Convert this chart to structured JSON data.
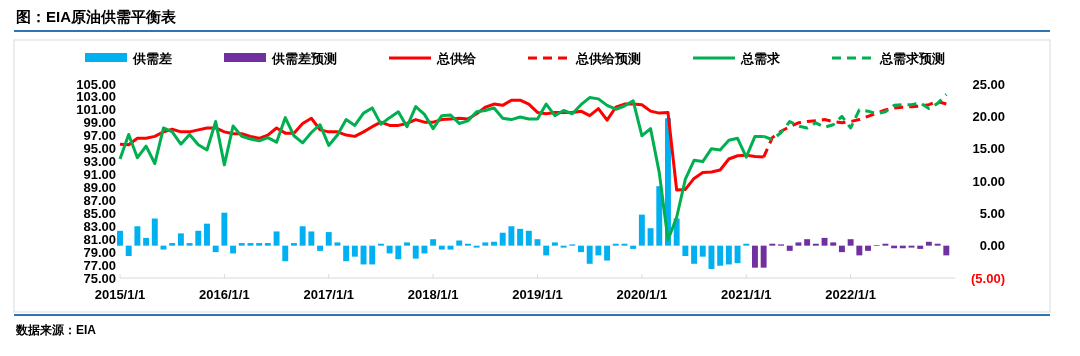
{
  "chart_data": {
    "type": "line",
    "title": "图：EIA原油供需平衡表",
    "annotations": [
      "数据来源：EIA"
    ],
    "legend": "top",
    "x": [
      "2015-01",
      "2015-02",
      "2015-03",
      "2015-04",
      "2015-05",
      "2015-06",
      "2015-07",
      "2015-08",
      "2015-09",
      "2015-10",
      "2015-11",
      "2015-12",
      "2016-01",
      "2016-02",
      "2016-03",
      "2016-04",
      "2016-05",
      "2016-06",
      "2016-07",
      "2016-08",
      "2016-09",
      "2016-10",
      "2016-11",
      "2016-12",
      "2017-01",
      "2017-02",
      "2017-03",
      "2017-04",
      "2017-05",
      "2017-06",
      "2017-07",
      "2017-08",
      "2017-09",
      "2017-10",
      "2017-11",
      "2017-12",
      "2018-01",
      "2018-02",
      "2018-03",
      "2018-04",
      "2018-05",
      "2018-06",
      "2018-07",
      "2018-08",
      "2018-09",
      "2018-10",
      "2018-11",
      "2018-12",
      "2019-01",
      "2019-02",
      "2019-03",
      "2019-04",
      "2019-05",
      "2019-06",
      "2019-07",
      "2019-08",
      "2019-09",
      "2019-10",
      "2019-11",
      "2019-12",
      "2020-01",
      "2020-02",
      "2020-03",
      "2020-04",
      "2020-05",
      "2020-06",
      "2020-07",
      "2020-08",
      "2020-09",
      "2020-10",
      "2020-11",
      "2020-12",
      "2021-01",
      "2021-02",
      "2021-03",
      "2021-04",
      "2021-05",
      "2021-06",
      "2021-07",
      "2021-08",
      "2021-09",
      "2021-10",
      "2021-11",
      "2021-12",
      "2022-01",
      "2022-02",
      "2022-03",
      "2022-04",
      "2022-05",
      "2022-06",
      "2022-07",
      "2022-08",
      "2022-09",
      "2022-10",
      "2022-11",
      "2022-12"
    ],
    "xlim": [
      "2015-01",
      "2023-01"
    ],
    "xticks": [
      {
        "value": "2015-01-01",
        "label": "2015/1/1"
      },
      {
        "value": "2016-01-01",
        "label": "2016/1/1"
      },
      {
        "value": "2017-01-01",
        "label": "2017/1/1"
      },
      {
        "value": "2018-01-01",
        "label": "2018/1/1"
      },
      {
        "value": "2019-01-01",
        "label": "2019/1/1"
      },
      {
        "value": "2020-01-01",
        "label": "2020/1/1"
      },
      {
        "value": "2021-01-01",
        "label": "2021/1/1"
      },
      {
        "value": "2022-01-01",
        "label": "2022/1/1"
      }
    ],
    "ylim": [
      75,
      105
    ],
    "yticks": [
      {
        "value": 75,
        "label": "75.00"
      },
      {
        "value": 77,
        "label": "77.00"
      },
      {
        "value": 79,
        "label": "79.00"
      },
      {
        "value": 81,
        "label": "81.00"
      },
      {
        "value": 83,
        "label": "83.00"
      },
      {
        "value": 85,
        "label": "85.00"
      },
      {
        "value": 87,
        "label": "87.00"
      },
      {
        "value": 89,
        "label": "89.00"
      },
      {
        "value": 91,
        "label": "91.00"
      },
      {
        "value": 93,
        "label": "93.00"
      },
      {
        "value": 95,
        "label": "95.00"
      },
      {
        "value": 97,
        "label": "97.00"
      },
      {
        "value": 99,
        "label": "99.00"
      },
      {
        "value": 101,
        "label": "101.00"
      },
      {
        "value": 103,
        "label": "103.00"
      },
      {
        "value": 105,
        "label": "105.00"
      }
    ],
    "y2lim": [
      -5,
      25
    ],
    "y2ticks": [
      {
        "value": -5,
        "label": "(5.00)"
      },
      {
        "value": 0,
        "label": "0.00"
      },
      {
        "value": 5,
        "label": "5.00"
      },
      {
        "value": 10,
        "label": "10.00"
      },
      {
        "value": 15,
        "label": "15.00"
      },
      {
        "value": 20,
        "label": "20.00"
      },
      {
        "value": 25,
        "label": "25.00"
      }
    ],
    "series": [
      {
        "name": "供需差",
        "type": "bar",
        "axis": "y2",
        "color": "#00b0f0",
        "values": [
          2.3,
          -1.6,
          3.0,
          1.2,
          4.2,
          -0.6,
          0.4,
          1.9,
          0.4,
          2.3,
          3.4,
          -1.0,
          5.1,
          -1.2,
          0.4,
          0.4,
          0.4,
          0.4,
          2.2,
          -2.4,
          0.4,
          3.0,
          2.2,
          -0.8,
          2.1,
          0.5,
          -2.4,
          -1.7,
          -2.9,
          -2.9,
          0.3,
          -1.2,
          -2.1,
          0.5,
          -2.0,
          -1.2,
          1.0,
          -0.6,
          -0.6,
          0.8,
          0.3,
          -0.3,
          0.5,
          0.6,
          2.0,
          3.0,
          2.6,
          2.3,
          1.0,
          -1.5,
          0.5,
          -0.3,
          0.2,
          -1.0,
          -2.8,
          -1.5,
          -2.3,
          0.3,
          0.3,
          -0.5,
          4.8,
          2.7,
          9.2,
          19.7,
          4.2,
          -1.6,
          -2.8,
          -1.7,
          -3.6,
          -3.1,
          -2.9,
          -2.7,
          0.3,
          null,
          null,
          null,
          null,
          null,
          null,
          null,
          null,
          null,
          null,
          null,
          null,
          null,
          null,
          null,
          null,
          null,
          null,
          null,
          null,
          null,
          null,
          null
        ]
      },
      {
        "name": "供需差预测",
        "type": "bar",
        "axis": "y2",
        "color": "#7030a0",
        "values": [
          null,
          null,
          null,
          null,
          null,
          null,
          null,
          null,
          null,
          null,
          null,
          null,
          null,
          null,
          null,
          null,
          null,
          null,
          null,
          null,
          null,
          null,
          null,
          null,
          null,
          null,
          null,
          null,
          null,
          null,
          null,
          null,
          null,
          null,
          null,
          null,
          null,
          null,
          null,
          null,
          null,
          null,
          null,
          null,
          null,
          null,
          null,
          null,
          null,
          null,
          null,
          null,
          null,
          null,
          null,
          null,
          null,
          null,
          null,
          null,
          null,
          null,
          null,
          null,
          null,
          null,
          null,
          null,
          null,
          null,
          null,
          null,
          null,
          -3.4,
          -3.4,
          0.3,
          0.2,
          -0.8,
          0.5,
          1.0,
          0.3,
          1.2,
          0.5,
          -1.0,
          1.0,
          -1.5,
          -0.8,
          0.1,
          0.3,
          -0.4,
          -0.4,
          -0.3,
          -0.5,
          0.6,
          0.3,
          -1.5
        ]
      },
      {
        "name": "总供给",
        "color": "#ff0000",
        "line_style": "solid",
        "values": [
          95.7,
          95.6,
          96.6,
          96.6,
          96.9,
          97.6,
          98.0,
          97.6,
          97.6,
          97.9,
          98.2,
          98.2,
          97.6,
          97.3,
          97.3,
          96.9,
          96.6,
          97.1,
          98.2,
          97.4,
          97.4,
          98.9,
          99.7,
          97.9,
          97.6,
          97.6,
          97.1,
          96.9,
          97.6,
          98.4,
          99.1,
          98.6,
          98.6,
          98.9,
          99.5,
          99.1,
          99.1,
          99.5,
          99.6,
          99.7,
          99.6,
          100.4,
          101.4,
          101.9,
          101.7,
          102.5,
          102.5,
          101.9,
          100.6,
          100.4,
          100.6,
          100.6,
          100.6,
          100.8,
          100.1,
          101.2,
          99.4,
          101.4,
          101.9,
          101.9,
          101.8,
          100.8,
          100.5,
          100.6,
          88.6,
          88.7,
          90.4,
          91.3,
          91.4,
          91.7,
          93.4,
          93.9,
          94.0,
          93.8,
          93.7,
          null,
          null,
          null,
          null,
          null,
          null,
          null,
          null,
          null,
          null,
          null,
          null,
          null,
          null,
          null,
          null,
          null,
          null,
          null,
          null,
          null
        ]
      },
      {
        "name": "总供给预测",
        "color": "#ff0000",
        "line_style": "dashed",
        "values": [
          null,
          null,
          null,
          null,
          null,
          null,
          null,
          null,
          null,
          null,
          null,
          null,
          null,
          null,
          null,
          null,
          null,
          null,
          null,
          null,
          null,
          null,
          null,
          null,
          null,
          null,
          null,
          null,
          null,
          null,
          null,
          null,
          null,
          null,
          null,
          null,
          null,
          null,
          null,
          null,
          null,
          null,
          null,
          null,
          null,
          null,
          null,
          null,
          null,
          null,
          null,
          null,
          null,
          null,
          null,
          null,
          null,
          null,
          null,
          null,
          null,
          null,
          null,
          null,
          null,
          null,
          null,
          null,
          null,
          null,
          null,
          null,
          null,
          null,
          93.7,
          96.7,
          97.7,
          98.4,
          99.0,
          99.2,
          99.3,
          99.5,
          99.2,
          99.0,
          99.2,
          99.5,
          100.0,
          100.5,
          101.0,
          101.3,
          101.4,
          101.5,
          101.6,
          101.8,
          102.3,
          101.9
        ]
      },
      {
        "name": "总需求",
        "color": "#00b050",
        "line_style": "solid",
        "values": [
          93.4,
          97.2,
          93.6,
          95.4,
          92.7,
          98.2,
          97.6,
          95.7,
          97.2,
          95.6,
          94.8,
          99.2,
          92.5,
          98.5,
          96.9,
          96.5,
          96.2,
          96.7,
          96.0,
          99.8,
          97.0,
          95.9,
          97.5,
          98.7,
          95.5,
          97.1,
          99.5,
          98.6,
          100.5,
          101.3,
          98.8,
          99.8,
          100.7,
          98.4,
          101.5,
          100.3,
          98.1,
          100.1,
          100.2,
          98.9,
          99.3,
          100.7,
          100.9,
          101.3,
          99.7,
          99.5,
          99.9,
          99.6,
          99.6,
          101.9,
          100.1,
          100.9,
          100.4,
          101.8,
          102.9,
          102.7,
          101.7,
          101.1,
          101.6,
          102.4,
          97.0,
          98.1,
          91.3,
          80.9,
          84.4,
          90.3,
          93.2,
          93.0,
          95.0,
          94.8,
          96.3,
          96.6,
          93.7,
          96.9,
          96.9,
          null,
          null,
          null,
          null,
          null,
          null,
          null,
          null,
          null,
          null,
          null,
          null,
          null,
          null,
          null,
          null,
          null,
          null,
          null,
          null,
          null
        ]
      },
      {
        "name": "总需求预测",
        "color": "#00b050",
        "line_style": "dashed",
        "values": [
          null,
          null,
          null,
          null,
          null,
          null,
          null,
          null,
          null,
          null,
          null,
          null,
          null,
          null,
          null,
          null,
          null,
          null,
          null,
          null,
          null,
          null,
          null,
          null,
          null,
          null,
          null,
          null,
          null,
          null,
          null,
          null,
          null,
          null,
          null,
          null,
          null,
          null,
          null,
          null,
          null,
          null,
          null,
          null,
          null,
          null,
          null,
          null,
          null,
          null,
          null,
          null,
          null,
          null,
          null,
          null,
          null,
          null,
          null,
          null,
          null,
          null,
          null,
          null,
          null,
          null,
          null,
          null,
          null,
          null,
          null,
          null,
          null,
          null,
          96.9,
          96.4,
          97.5,
          99.2,
          98.5,
          98.2,
          99.0,
          98.3,
          98.7,
          100.0,
          98.2,
          101.0,
          100.8,
          100.4,
          100.7,
          101.7,
          101.8,
          101.8,
          102.1,
          101.2,
          102.0,
          103.4
        ]
      }
    ]
  }
}
